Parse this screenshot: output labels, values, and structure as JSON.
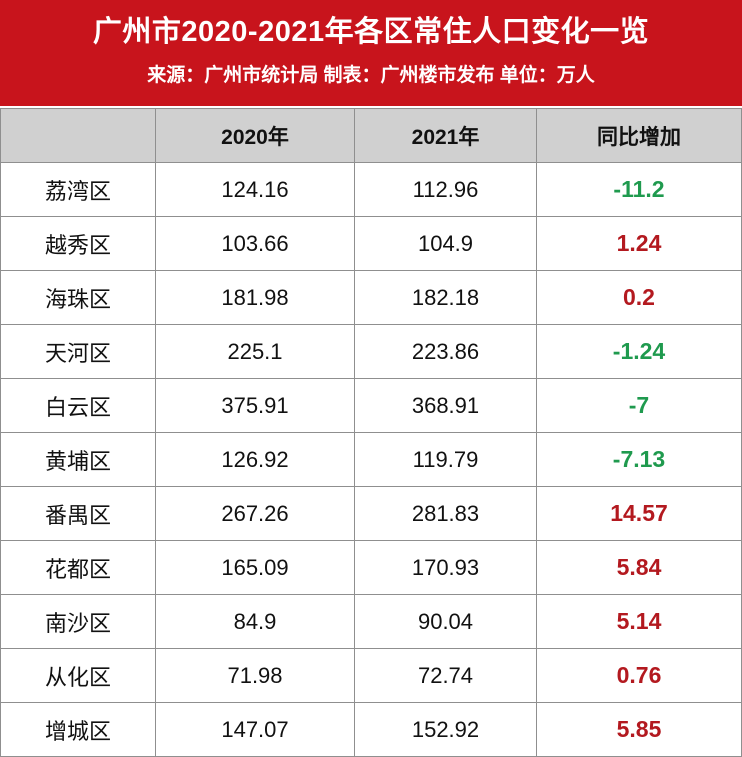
{
  "header": {
    "title": "广州市2020-2021年各区常住人口变化一览",
    "subtitle": "来源：广州市统计局 制表：广州楼市发布 单位：万人",
    "background_color": "#c8141c"
  },
  "table": {
    "columns": [
      "",
      "2020年",
      "2021年",
      "同比增加"
    ],
    "rows": [
      {
        "district": "荔湾区",
        "y2020": "124.16",
        "y2021": "112.96",
        "change": "-11.2"
      },
      {
        "district": "越秀区",
        "y2020": "103.66",
        "y2021": "104.9",
        "change": "1.24"
      },
      {
        "district": "海珠区",
        "y2020": "181.98",
        "y2021": "182.18",
        "change": "0.2"
      },
      {
        "district": "天河区",
        "y2020": "225.1",
        "y2021": "223.86",
        "change": "-1.24"
      },
      {
        "district": "白云区",
        "y2020": "375.91",
        "y2021": "368.91",
        "change": "-7"
      },
      {
        "district": "黄埔区",
        "y2020": "126.92",
        "y2021": "119.79",
        "change": "-7.13"
      },
      {
        "district": "番禺区",
        "y2020": "267.26",
        "y2021": "281.83",
        "change": "14.57"
      },
      {
        "district": "花都区",
        "y2020": "165.09",
        "y2021": "170.93",
        "change": "5.84"
      },
      {
        "district": "南沙区",
        "y2020": "84.9",
        "y2021": "90.04",
        "change": "5.14"
      },
      {
        "district": "从化区",
        "y2020": "71.98",
        "y2021": "72.74",
        "change": "0.76"
      },
      {
        "district": "增城区",
        "y2020": "147.07",
        "y2021": "152.92",
        "change": "5.85"
      }
    ],
    "positive_color": "#b3191f",
    "negative_color": "#1f9a4e",
    "header_background": "#d0d0d0"
  }
}
